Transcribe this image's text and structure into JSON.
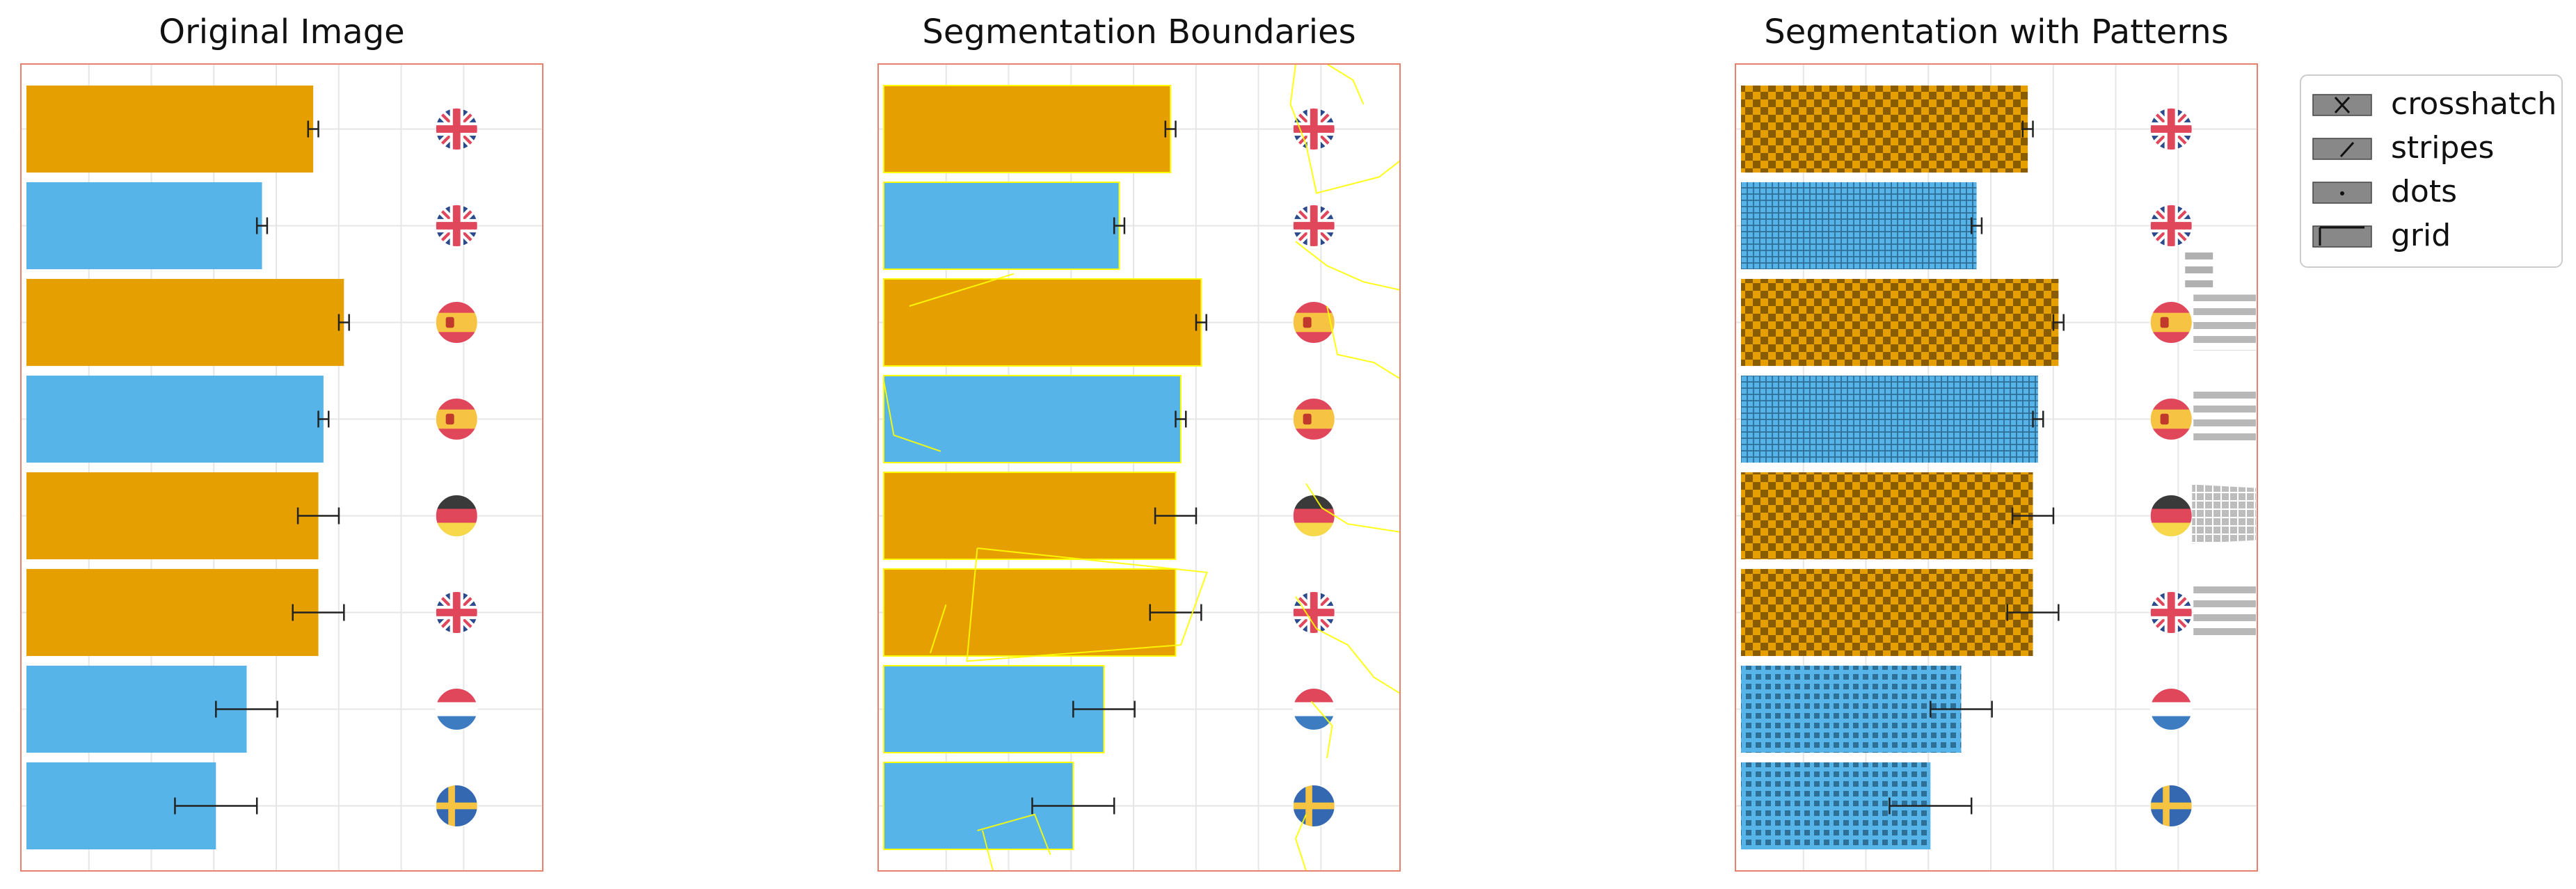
{
  "chart_data": [
    {
      "type": "bar",
      "orientation": "horizontal",
      "title": "Original Image",
      "xlabel": "",
      "ylabel": "",
      "grid": true,
      "series": [
        {
          "values": [
            0.56,
            0.46,
            0.62,
            0.58,
            0.57,
            0.57,
            0.43,
            0.37
          ],
          "errors": [
            0.01,
            0.01,
            0.01,
            0.01,
            0.04,
            0.05,
            0.06,
            0.08
          ],
          "colors": [
            "#e69f00",
            "#56b4e9",
            "#e69f00",
            "#56b4e9",
            "#e69f00",
            "#e69f00",
            "#56b4e9",
            "#56b4e9"
          ],
          "flags": [
            "uk",
            "uk",
            "es",
            "es",
            "de",
            "uk",
            "nl",
            "se"
          ]
        }
      ]
    },
    {
      "type": "bar",
      "orientation": "horizontal",
      "title": "Segmentation Boundaries",
      "xlabel": "",
      "ylabel": "",
      "grid": true,
      "boundary_color": "#ffff00",
      "series": [
        {
          "values": [
            0.56,
            0.46,
            0.62,
            0.58,
            0.57,
            0.57,
            0.43,
            0.37
          ],
          "errors": [
            0.01,
            0.01,
            0.01,
            0.01,
            0.04,
            0.05,
            0.06,
            0.08
          ],
          "colors": [
            "#e69f00",
            "#56b4e9",
            "#e69f00",
            "#56b4e9",
            "#e69f00",
            "#e69f00",
            "#56b4e9",
            "#56b4e9"
          ],
          "flags": [
            "uk",
            "uk",
            "es",
            "es",
            "de",
            "uk",
            "nl",
            "se"
          ]
        }
      ]
    },
    {
      "type": "bar",
      "orientation": "horizontal",
      "title": "Segmentation with Patterns",
      "xlabel": "",
      "ylabel": "",
      "grid": true,
      "legend_position": "outside-top-right",
      "legend": [
        "crosshatch",
        "stripes",
        "dots",
        "grid"
      ],
      "series": [
        {
          "values": [
            0.56,
            0.46,
            0.62,
            0.58,
            0.57,
            0.57,
            0.43,
            0.37
          ],
          "errors": [
            0.01,
            0.01,
            0.01,
            0.01,
            0.04,
            0.05,
            0.06,
            0.08
          ],
          "colors": [
            "#e69f00",
            "#56b4e9",
            "#e69f00",
            "#56b4e9",
            "#e69f00",
            "#e69f00",
            "#56b4e9",
            "#56b4e9"
          ],
          "flags": [
            "uk",
            "uk",
            "es",
            "es",
            "de",
            "uk",
            "nl",
            "se"
          ]
        }
      ]
    }
  ]
}
